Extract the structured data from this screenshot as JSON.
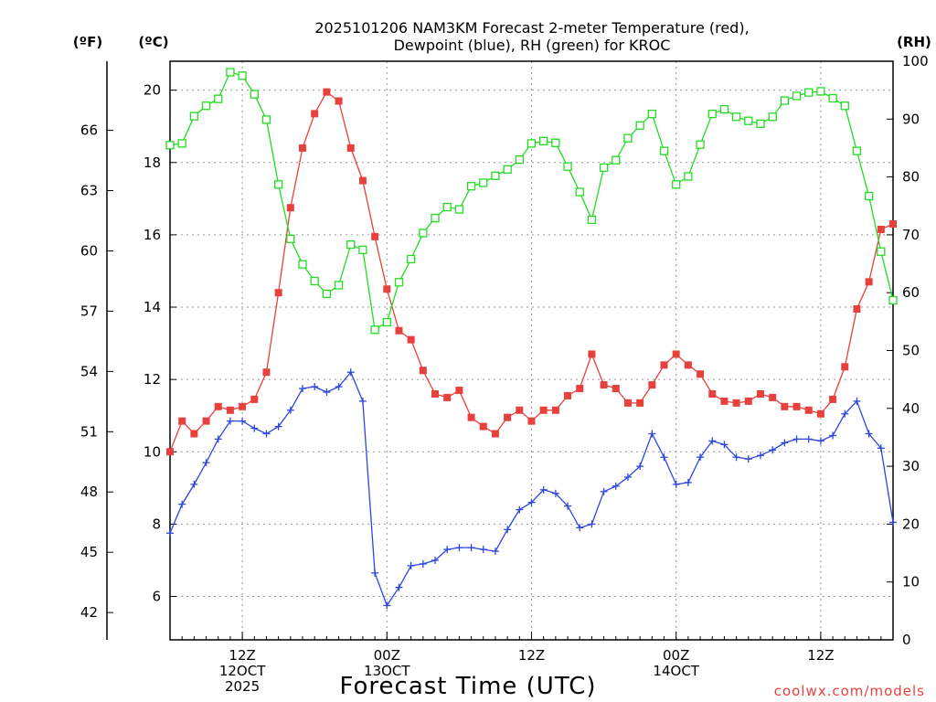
{
  "chart_data": {
    "type": "line",
    "title": "2025101206 NAM3KM Forecast 2-meter Temperature (red),",
    "subtitle": "Dewpoint (blue), RH (green) for KROC",
    "xlabel": "Forecast Time (UTC)",
    "credit": "coolwx.com/models",
    "unit_labels": {
      "fahrenheit": "(ºF)",
      "celsius": "(ºC)",
      "rh": "(RH)"
    },
    "x_range_hours": [
      0,
      60
    ],
    "y_celsius_range": [
      4.8,
      20.8
    ],
    "y_rh_range": [
      0,
      100
    ],
    "grid": true,
    "celsius_ticks": [
      {
        "value": 6,
        "label": "6"
      },
      {
        "value": 8,
        "label": "8"
      },
      {
        "value": 10,
        "label": "10"
      },
      {
        "value": 12,
        "label": "12"
      },
      {
        "value": 14,
        "label": "14"
      },
      {
        "value": 16,
        "label": "16"
      },
      {
        "value": 18,
        "label": "18"
      },
      {
        "value": 20,
        "label": "20"
      }
    ],
    "fahrenheit_ticks": [
      {
        "value": 42,
        "label": "42"
      },
      {
        "value": 45,
        "label": "45"
      },
      {
        "value": 48,
        "label": "48"
      },
      {
        "value": 51,
        "label": "51"
      },
      {
        "value": 54,
        "label": "54"
      },
      {
        "value": 57,
        "label": "57"
      },
      {
        "value": 60,
        "label": "60"
      },
      {
        "value": 63,
        "label": "63"
      },
      {
        "value": 66,
        "label": "66"
      }
    ],
    "rh_ticks": [
      {
        "value": 0,
        "label": "0"
      },
      {
        "value": 10,
        "label": "10"
      },
      {
        "value": 20,
        "label": "20"
      },
      {
        "value": 30,
        "label": "30"
      },
      {
        "value": 40,
        "label": "40"
      },
      {
        "value": 50,
        "label": "50"
      },
      {
        "value": 60,
        "label": "60"
      },
      {
        "value": 70,
        "label": "70"
      },
      {
        "value": 80,
        "label": "80"
      },
      {
        "value": 90,
        "label": "90"
      },
      {
        "value": 100,
        "label": "100"
      }
    ],
    "x_ticks": [
      {
        "hour": 6,
        "lines": [
          "12Z",
          "12OCT",
          "2025"
        ]
      },
      {
        "hour": 18,
        "lines": [
          "00Z",
          "13OCT"
        ]
      },
      {
        "hour": 30,
        "lines": [
          "12Z"
        ]
      },
      {
        "hour": 42,
        "lines": [
          "00Z",
          "14OCT"
        ]
      },
      {
        "hour": 54,
        "lines": [
          "12Z"
        ]
      }
    ],
    "hours": [
      0,
      1,
      2,
      3,
      4,
      5,
      6,
      7,
      8,
      9,
      10,
      11,
      12,
      13,
      14,
      15,
      16,
      17,
      18,
      19,
      20,
      21,
      22,
      23,
      24,
      25,
      26,
      27,
      28,
      29,
      30,
      31,
      32,
      33,
      34,
      35,
      36,
      37,
      38,
      39,
      40,
      41,
      42,
      43,
      44,
      45,
      46,
      47,
      48,
      49,
      50,
      51,
      52,
      53,
      54,
      55,
      56,
      57,
      58,
      59,
      60
    ],
    "series": [
      {
        "name": "2-meter Temperature",
        "color": "#e8403c",
        "axis": "celsius",
        "marker": "filled-square",
        "values": [
          10.0,
          10.85,
          10.5,
          10.85,
          11.25,
          11.15,
          11.25,
          11.45,
          12.2,
          14.4,
          16.75,
          18.4,
          19.35,
          19.95,
          19.7,
          18.4,
          17.5,
          15.95,
          14.5,
          13.35,
          13.1,
          12.25,
          11.6,
          11.5,
          11.7,
          10.95,
          10.7,
          10.5,
          10.95,
          11.15,
          10.85,
          11.15,
          11.15,
          11.55,
          11.75,
          12.7,
          11.85,
          11.75,
          11.35,
          11.35,
          11.85,
          12.4,
          12.7,
          12.4,
          12.15,
          11.6,
          11.4,
          11.35,
          11.4,
          11.6,
          11.5,
          11.25,
          11.25,
          11.15,
          11.05,
          11.45,
          12.35,
          13.95,
          14.7,
          16.15,
          16.3
        ]
      },
      {
        "name": "Dewpoint",
        "color": "#2e46e0",
        "axis": "celsius",
        "marker": "plus",
        "values": [
          7.75,
          8.55,
          9.1,
          9.7,
          10.35,
          10.85,
          10.85,
          10.65,
          10.5,
          10.7,
          11.15,
          11.75,
          11.8,
          11.65,
          11.8,
          12.2,
          11.4,
          6.65,
          5.75,
          6.25,
          6.85,
          6.9,
          7.0,
          7.3,
          7.35,
          7.35,
          7.3,
          7.25,
          7.85,
          8.4,
          8.6,
          8.95,
          8.85,
          8.5,
          7.9,
          8.0,
          8.9,
          9.05,
          9.3,
          9.6,
          10.5,
          9.85,
          9.1,
          9.15,
          9.85,
          10.3,
          10.2,
          9.85,
          9.8,
          9.9,
          10.05,
          10.25,
          10.35,
          10.35,
          10.3,
          10.45,
          11.05,
          11.4,
          10.5,
          10.1,
          8.05
        ]
      },
      {
        "name": "RH",
        "color": "#22dd22",
        "axis": "rh",
        "marker": "open-square",
        "values": [
          85.5,
          85.8,
          90.5,
          92.3,
          93.5,
          98.1,
          97.5,
          94.3,
          89.9,
          78.7,
          69.3,
          64.9,
          62.0,
          59.8,
          61.3,
          68.3,
          67.4,
          53.6,
          54.9,
          61.8,
          65.8,
          70.3,
          72.9,
          74.8,
          74.4,
          78.4,
          79.0,
          80.2,
          81.3,
          83.0,
          85.8,
          86.2,
          85.9,
          81.8,
          77.4,
          72.6,
          81.6,
          82.9,
          86.7,
          88.9,
          90.9,
          84.5,
          78.7,
          80.1,
          85.6,
          90.9,
          91.7,
          90.4,
          89.7,
          89.2,
          90.4,
          93.2,
          94.0,
          94.6,
          94.8,
          93.6,
          92.3,
          84.5,
          76.7,
          67.1,
          58.7
        ]
      }
    ]
  }
}
